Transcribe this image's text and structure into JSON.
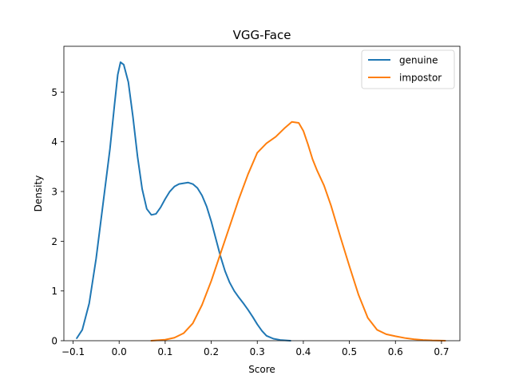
{
  "chart_data": {
    "type": "line",
    "title": "VGG-Face",
    "xlabel": "Score",
    "ylabel": "Density",
    "xlim": [
      -0.12,
      0.74
    ],
    "ylim": [
      0,
      5.92
    ],
    "xticks": [
      {
        "value": -0.1,
        "label": "−0.1"
      },
      {
        "value": 0.0,
        "label": "0.0"
      },
      {
        "value": 0.1,
        "label": "0.1"
      },
      {
        "value": 0.2,
        "label": "0.2"
      },
      {
        "value": 0.3,
        "label": "0.3"
      },
      {
        "value": 0.4,
        "label": "0.4"
      },
      {
        "value": 0.5,
        "label": "0.5"
      },
      {
        "value": 0.6,
        "label": "0.6"
      },
      {
        "value": 0.7,
        "label": "0.7"
      }
    ],
    "yticks": [
      {
        "value": 0,
        "label": "0"
      },
      {
        "value": 1,
        "label": "1"
      },
      {
        "value": 2,
        "label": "2"
      },
      {
        "value": 3,
        "label": "3"
      },
      {
        "value": 4,
        "label": "4"
      },
      {
        "value": 5,
        "label": "5"
      }
    ],
    "grid": false,
    "legend_position": "top-right",
    "series": [
      {
        "name": "genuine",
        "color": "#1f77b4",
        "points": [
          [
            -0.092,
            0.05
          ],
          [
            -0.08,
            0.22
          ],
          [
            -0.065,
            0.75
          ],
          [
            -0.05,
            1.65
          ],
          [
            -0.035,
            2.75
          ],
          [
            -0.02,
            3.85
          ],
          [
            -0.01,
            4.75
          ],
          [
            -0.003,
            5.35
          ],
          [
            0.003,
            5.6
          ],
          [
            0.01,
            5.55
          ],
          [
            0.02,
            5.2
          ],
          [
            0.03,
            4.5
          ],
          [
            0.04,
            3.7
          ],
          [
            0.05,
            3.05
          ],
          [
            0.06,
            2.65
          ],
          [
            0.07,
            2.53
          ],
          [
            0.08,
            2.55
          ],
          [
            0.09,
            2.68
          ],
          [
            0.1,
            2.85
          ],
          [
            0.11,
            3.0
          ],
          [
            0.12,
            3.1
          ],
          [
            0.13,
            3.15
          ],
          [
            0.15,
            3.18
          ],
          [
            0.16,
            3.15
          ],
          [
            0.17,
            3.07
          ],
          [
            0.18,
            2.92
          ],
          [
            0.19,
            2.7
          ],
          [
            0.2,
            2.4
          ],
          [
            0.21,
            2.05
          ],
          [
            0.22,
            1.7
          ],
          [
            0.23,
            1.4
          ],
          [
            0.24,
            1.17
          ],
          [
            0.25,
            1.0
          ],
          [
            0.26,
            0.87
          ],
          [
            0.27,
            0.75
          ],
          [
            0.28,
            0.62
          ],
          [
            0.29,
            0.48
          ],
          [
            0.3,
            0.33
          ],
          [
            0.31,
            0.2
          ],
          [
            0.32,
            0.1
          ],
          [
            0.335,
            0.04
          ],
          [
            0.35,
            0.015
          ],
          [
            0.372,
            0.0
          ]
        ]
      },
      {
        "name": "impostor",
        "color": "#ff7f0e",
        "points": [
          [
            0.07,
            0.0
          ],
          [
            0.1,
            0.02
          ],
          [
            0.12,
            0.06
          ],
          [
            0.14,
            0.15
          ],
          [
            0.16,
            0.35
          ],
          [
            0.18,
            0.72
          ],
          [
            0.2,
            1.2
          ],
          [
            0.22,
            1.75
          ],
          [
            0.24,
            2.3
          ],
          [
            0.26,
            2.85
          ],
          [
            0.28,
            3.35
          ],
          [
            0.3,
            3.78
          ],
          [
            0.32,
            3.97
          ],
          [
            0.34,
            4.1
          ],
          [
            0.36,
            4.28
          ],
          [
            0.375,
            4.4
          ],
          [
            0.39,
            4.38
          ],
          [
            0.4,
            4.22
          ],
          [
            0.41,
            3.95
          ],
          [
            0.42,
            3.65
          ],
          [
            0.43,
            3.42
          ],
          [
            0.445,
            3.12
          ],
          [
            0.46,
            2.72
          ],
          [
            0.48,
            2.1
          ],
          [
            0.5,
            1.5
          ],
          [
            0.52,
            0.92
          ],
          [
            0.54,
            0.46
          ],
          [
            0.56,
            0.22
          ],
          [
            0.58,
            0.13
          ],
          [
            0.6,
            0.09
          ],
          [
            0.62,
            0.055
          ],
          [
            0.64,
            0.03
          ],
          [
            0.66,
            0.015
          ],
          [
            0.68,
            0.006
          ],
          [
            0.7,
            0.002
          ],
          [
            0.708,
            0.0
          ]
        ]
      }
    ]
  }
}
